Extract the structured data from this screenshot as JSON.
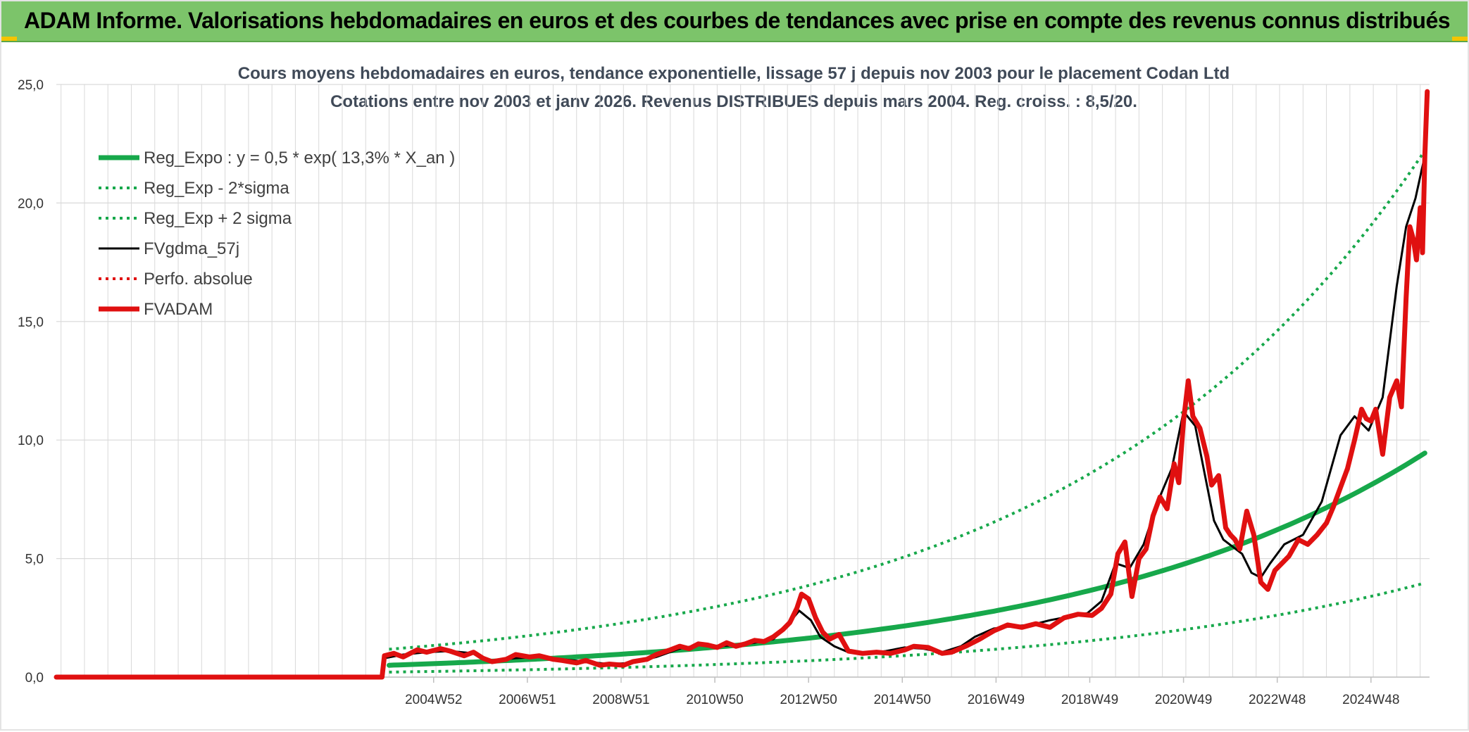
{
  "header": {
    "title": "ADAM Informe. Valorisations hebdomadaires en euros et des courbes de tendances avec prise en compte des revenus connus distribués"
  },
  "colors": {
    "banner": "#7cc46a",
    "green": "#17a84b",
    "black": "#000000",
    "red": "#e01010",
    "grid": "#d9d9d9"
  },
  "chart_data": {
    "type": "line",
    "title": "Cours moyens hebdomadaires en euros, tendance exponentielle, lissage 57 j depuis nov 2003 pour le placement Codan Ltd",
    "subtitle": "Cotations entre nov 2003 et janv 2026. Revenus DISTRIBUES depuis mars 2004. Reg. croiss. : 8,5/20.",
    "xlabel": "",
    "ylabel": "",
    "ylim": [
      0,
      25
    ],
    "xlim": [
      1996.9,
      2026.2
    ],
    "yticks": [
      0,
      5,
      10,
      15,
      20,
      25
    ],
    "ytick_labels": [
      "0,0",
      "5,0",
      "10,0",
      "15,0",
      "20,0",
      "25,0"
    ],
    "xticks": [
      2004.95,
      2006.95,
      2008.95,
      2010.95,
      2012.95,
      2014.95,
      2016.95,
      2018.95,
      2020.95,
      2022.95,
      2024.95
    ],
    "xtick_labels": [
      "2004W52",
      "2006W51",
      "2008W51",
      "2010W50",
      "2012W50",
      "2014W50",
      "2016W49",
      "2018W49",
      "2020W49",
      "2022W48",
      "2024W48"
    ],
    "legend_position": "top-left",
    "series": [
      {
        "name": "Reg_Expo : y = 0,5 * exp( 13,3% *  X_an )",
        "style": "solid-thick",
        "color": "#17a84b",
        "formula": {
          "kind": "exp",
          "a": 0.5,
          "r": 0.133,
          "t0": 2004.0,
          "k": 1.0
        }
      },
      {
        "name": "Reg_Exp - 2*sigma",
        "style": "dotted",
        "color": "#17a84b",
        "formula": {
          "kind": "exp",
          "a": 0.5,
          "r": 0.133,
          "t0": 2004.0,
          "k": 0.42
        }
      },
      {
        "name": "Reg_Exp + 2 sigma",
        "style": "dotted",
        "color": "#17a84b",
        "formula": {
          "kind": "exp",
          "a": 0.5,
          "r": 0.133,
          "t0": 2004.0,
          "k": 2.35
        }
      },
      {
        "name": "FVgdma_57j",
        "style": "solid",
        "color": "#000000",
        "x": [
          1996.9,
          2003.85,
          2003.9,
          2004.3,
          2004.8,
          2005.3,
          2005.8,
          2006.2,
          2006.7,
          2007.2,
          2007.7,
          2008.2,
          2008.7,
          2009.2,
          2009.7,
          2010.2,
          2010.6,
          2011.0,
          2011.4,
          2011.8,
          2012.2,
          2012.5,
          2012.75,
          2013.0,
          2013.2,
          2013.5,
          2013.8,
          2014.2,
          2014.6,
          2015.0,
          2015.4,
          2015.8,
          2016.2,
          2016.5,
          2016.9,
          2017.3,
          2017.7,
          2018.1,
          2018.5,
          2018.9,
          2019.2,
          2019.5,
          2019.8,
          2020.1,
          2020.4,
          2020.7,
          2020.95,
          2021.2,
          2021.4,
          2021.6,
          2021.8,
          2022.0,
          2022.2,
          2022.4,
          2022.6,
          2022.8,
          2023.1,
          2023.5,
          2023.9,
          2024.1,
          2024.3,
          2024.6,
          2024.9,
          2025.2,
          2025.5,
          2025.7,
          2025.9,
          2026.1
        ],
        "y": [
          0,
          0,
          0.8,
          0.95,
          1.05,
          1.1,
          1.0,
          0.7,
          0.8,
          0.85,
          0.75,
          0.65,
          0.55,
          0.6,
          0.85,
          1.2,
          1.35,
          1.3,
          1.35,
          1.45,
          1.6,
          2.2,
          2.8,
          2.4,
          1.7,
          1.3,
          1.05,
          1.0,
          1.1,
          1.25,
          1.2,
          1.05,
          1.3,
          1.7,
          2.05,
          2.15,
          2.2,
          2.4,
          2.55,
          2.7,
          3.2,
          4.8,
          4.6,
          5.6,
          7.4,
          8.8,
          11.2,
          10.6,
          8.6,
          6.6,
          5.8,
          5.5,
          5.2,
          4.4,
          4.2,
          4.8,
          5.6,
          6.0,
          7.4,
          8.8,
          10.2,
          11.0,
          10.4,
          11.8,
          16.5,
          19.0,
          20.2,
          22.0
        ]
      },
      {
        "name": "Perfo. absolue",
        "style": "dotted",
        "color": "#e01010",
        "x": [
          1996.9,
          2003.85
        ],
        "y": [
          0,
          0
        ]
      },
      {
        "name": "FVADAM",
        "style": "solid-thick",
        "color": "#e01010",
        "x": [
          1996.9,
          2003.85,
          2003.9,
          2004.1,
          2004.3,
          2004.6,
          2004.8,
          2005.1,
          2005.3,
          2005.6,
          2005.8,
          2006.0,
          2006.2,
          2006.5,
          2006.7,
          2007.0,
          2007.2,
          2007.5,
          2007.7,
          2008.0,
          2008.2,
          2008.5,
          2008.7,
          2009.0,
          2009.2,
          2009.5,
          2009.7,
          2010.0,
          2010.2,
          2010.4,
          2010.6,
          2010.8,
          2011.0,
          2011.2,
          2011.4,
          2011.6,
          2011.8,
          2012.0,
          2012.2,
          2012.4,
          2012.55,
          2012.7,
          2012.8,
          2012.95,
          2013.1,
          2013.25,
          2013.4,
          2013.6,
          2013.8,
          2014.1,
          2014.4,
          2014.7,
          2015.0,
          2015.2,
          2015.5,
          2015.8,
          2016.0,
          2016.3,
          2016.6,
          2016.9,
          2017.2,
          2017.5,
          2017.8,
          2018.1,
          2018.4,
          2018.7,
          2019.0,
          2019.2,
          2019.4,
          2019.55,
          2019.7,
          2019.85,
          2020.0,
          2020.15,
          2020.3,
          2020.45,
          2020.6,
          2020.75,
          2020.85,
          2020.95,
          2021.05,
          2021.15,
          2021.3,
          2021.45,
          2021.55,
          2021.7,
          2021.85,
          2021.95,
          2022.05,
          2022.15,
          2022.3,
          2022.45,
          2022.6,
          2022.75,
          2022.9,
          2023.05,
          2023.2,
          2023.4,
          2023.6,
          2023.8,
          2024.0,
          2024.15,
          2024.3,
          2024.45,
          2024.6,
          2024.75,
          2024.85,
          2024.95,
          2025.05,
          2025.2,
          2025.35,
          2025.5,
          2025.6,
          2025.7,
          2025.78,
          2025.85,
          2025.92,
          2026.0,
          2026.05,
          2026.1,
          2026.15
        ],
        "y": [
          0,
          0,
          0.9,
          1.0,
          0.85,
          1.15,
          1.05,
          1.2,
          1.1,
          0.9,
          1.05,
          0.8,
          0.65,
          0.75,
          0.95,
          0.85,
          0.9,
          0.75,
          0.7,
          0.6,
          0.7,
          0.5,
          0.55,
          0.5,
          0.65,
          0.75,
          0.95,
          1.15,
          1.3,
          1.2,
          1.4,
          1.35,
          1.25,
          1.45,
          1.3,
          1.4,
          1.55,
          1.5,
          1.7,
          2.0,
          2.3,
          2.9,
          3.5,
          3.3,
          2.5,
          1.9,
          1.6,
          1.8,
          1.1,
          1.0,
          1.05,
          1.0,
          1.15,
          1.3,
          1.25,
          1.0,
          1.05,
          1.3,
          1.6,
          1.95,
          2.2,
          2.1,
          2.25,
          2.1,
          2.5,
          2.65,
          2.6,
          2.9,
          3.5,
          5.2,
          5.7,
          3.4,
          5.0,
          5.4,
          6.8,
          7.6,
          7.1,
          9.0,
          8.2,
          10.8,
          12.5,
          11.0,
          10.5,
          9.3,
          8.1,
          8.5,
          6.3,
          6.0,
          5.8,
          5.4,
          7.0,
          6.0,
          4.0,
          3.7,
          4.5,
          4.8,
          5.1,
          5.8,
          5.6,
          6.0,
          6.5,
          7.2,
          8.0,
          8.8,
          10.0,
          11.3,
          10.9,
          10.8,
          11.3,
          9.4,
          11.8,
          12.5,
          11.4,
          16.0,
          19.0,
          18.5,
          17.6,
          19.8,
          17.9,
          22.0,
          24.7
        ]
      }
    ]
  }
}
